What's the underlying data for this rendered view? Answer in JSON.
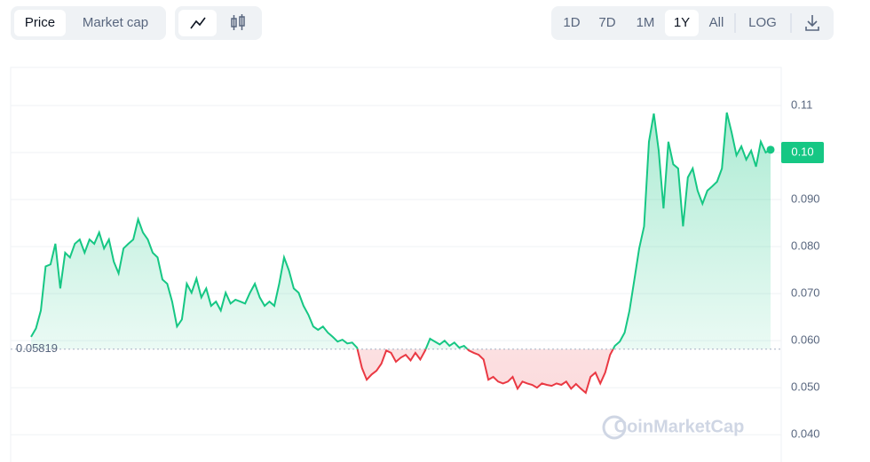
{
  "controls": {
    "metric": [
      "Price",
      "Market cap"
    ],
    "ranges": [
      "1D",
      "7D",
      "1M",
      "1Y",
      "All"
    ],
    "scale": "LOG"
  },
  "chart_data": {
    "type": "line",
    "values": [
      0.0608,
      0.0626,
      0.0664,
      0.0758,
      0.0762,
      0.0806,
      0.0711,
      0.0787,
      0.0777,
      0.0806,
      0.0815,
      0.0787,
      0.0815,
      0.0806,
      0.083,
      0.0796,
      0.0815,
      0.0768,
      0.0743,
      0.0796,
      0.0806,
      0.0815,
      0.0858,
      0.083,
      0.0815,
      0.0787,
      0.0777,
      0.073,
      0.0721,
      0.0683,
      0.063,
      0.0645,
      0.0721,
      0.0702,
      0.0732,
      0.0692,
      0.0711,
      0.0674,
      0.0683,
      0.0664,
      0.0702,
      0.0679,
      0.0687,
      0.0683,
      0.0679,
      0.0702,
      0.0721,
      0.0692,
      0.0674,
      0.0683,
      0.0674,
      0.0721,
      0.0777,
      0.0749,
      0.0711,
      0.0702,
      0.0674,
      0.0655,
      0.063,
      0.0623,
      0.063,
      0.0617,
      0.0608,
      0.0598,
      0.0602,
      0.0594,
      0.0596,
      0.0585,
      0.0542,
      0.0517,
      0.0528,
      0.0536,
      0.0551,
      0.0579,
      0.0574,
      0.0555,
      0.0564,
      0.057,
      0.0558,
      0.0574,
      0.056,
      0.0579,
      0.0604,
      0.0598,
      0.0592,
      0.06,
      0.0589,
      0.0596,
      0.0585,
      0.0589,
      0.0579,
      0.0574,
      0.057,
      0.056,
      0.0517,
      0.0523,
      0.0513,
      0.0509,
      0.0513,
      0.0523,
      0.0498,
      0.0513,
      0.0509,
      0.0506,
      0.05,
      0.0509,
      0.0506,
      0.0504,
      0.0509,
      0.0506,
      0.0513,
      0.0498,
      0.0508,
      0.0498,
      0.0489,
      0.0523,
      0.0532,
      0.0509,
      0.0532,
      0.057,
      0.0589,
      0.0598,
      0.0617,
      0.0664,
      0.073,
      0.0796,
      0.0843,
      0.1023,
      0.1083,
      0.1004,
      0.0881,
      0.1023,
      0.0975,
      0.0966,
      0.0843,
      0.0947,
      0.0966,
      0.0919,
      0.0891,
      0.0919,
      0.0928,
      0.0938,
      0.0966,
      0.1085,
      0.1042,
      0.0994,
      0.1013,
      0.0985,
      0.1004,
      0.097,
      0.1023,
      0.1,
      0.1006
    ],
    "color_up": "#16c784",
    "color_down": "#ea3943",
    "baseline": 0.05819,
    "last_price": {
      "value": 0.1,
      "label": "0.10"
    },
    "ylim": [
      0.0342,
      0.1181
    ],
    "yticks": [
      {
        "value": 0.04,
        "label": "0.040"
      },
      {
        "value": 0.05,
        "label": "0.050"
      },
      {
        "value": 0.06,
        "label": "0.060"
      },
      {
        "value": 0.07,
        "label": "0.070"
      },
      {
        "value": 0.08,
        "label": "0.080"
      },
      {
        "value": 0.09,
        "label": "0.090"
      },
      {
        "value": 0.1,
        "label": "0.10"
      },
      0.11
    ],
    "grid": true,
    "watermark": "CoinMarketCap"
  }
}
